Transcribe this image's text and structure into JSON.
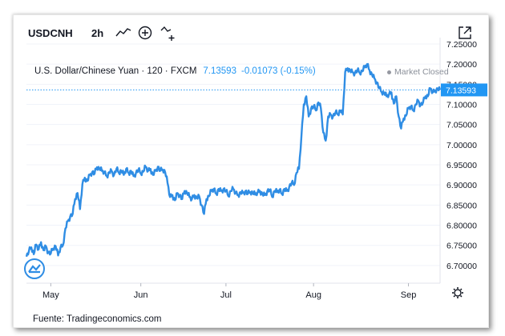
{
  "toolbar": {
    "symbol": "USDCNH",
    "interval": "2h",
    "icons": [
      "line-style-icon",
      "add-indicator-icon",
      "compare-icon",
      "popout-icon",
      "settings-icon"
    ]
  },
  "legend": {
    "instrument": "U.S. Dollar/Chinese Yuan · 120 · FXCM",
    "price": "7.13593",
    "change": "-0.01073 (-0.15%)",
    "market_status": "Market Closed"
  },
  "source": "Fuente: Tradingeconomics.com",
  "colors": {
    "line": "#2f8de4",
    "price_tag": "#2196f3",
    "axis_text": "#131722",
    "grid": "#f0f3fa"
  },
  "chart_data": {
    "type": "line",
    "title": "",
    "xlabel": "",
    "ylabel": "",
    "ylim": [
      6.66,
      7.25
    ],
    "yticks": [
      6.7,
      6.75,
      6.8,
      6.85,
      6.9,
      6.95,
      7.0,
      7.05,
      7.1,
      7.15,
      7.2,
      7.25
    ],
    "ytick_labels": [
      "6.70000",
      "6.75000",
      "6.80000",
      "6.85000",
      "6.90000",
      "6.95000",
      "7.00000",
      "7.05000",
      "7.10000",
      "7.15000",
      "7.20000",
      "7.25000"
    ],
    "xtick_labels": [
      "May",
      "Jun",
      "Jul",
      "Aug",
      "Sep"
    ],
    "xtick_index": [
      10,
      47,
      82,
      118,
      157
    ],
    "last_value_label": "7.13593",
    "last_value": 7.13593,
    "series": [
      {
        "values": [
          6.722,
          6.735,
          6.745,
          6.728,
          6.752,
          6.74,
          6.758,
          6.738,
          6.748,
          6.732,
          6.73,
          6.742,
          6.748,
          6.725,
          6.745,
          6.75,
          6.792,
          6.81,
          6.822,
          6.828,
          6.865,
          6.88,
          6.84,
          6.902,
          6.918,
          6.91,
          6.925,
          6.932,
          6.928,
          6.944,
          6.94,
          6.935,
          6.932,
          6.922,
          6.932,
          6.935,
          6.925,
          6.94,
          6.93,
          6.935,
          6.925,
          6.94,
          6.93,
          6.935,
          6.922,
          6.93,
          6.938,
          6.928,
          6.933,
          6.945,
          6.935,
          6.94,
          6.925,
          6.935,
          6.945,
          6.935,
          6.938,
          6.932,
          6.905,
          6.87,
          6.875,
          6.862,
          6.88,
          6.875,
          6.865,
          6.885,
          6.88,
          6.87,
          6.865,
          6.875,
          6.868,
          6.872,
          6.85,
          6.828,
          6.865,
          6.872,
          6.885,
          6.89,
          6.878,
          6.89,
          6.885,
          6.89,
          6.885,
          6.872,
          6.885,
          6.89,
          6.88,
          6.875,
          6.882,
          6.88,
          6.885,
          6.878,
          6.882,
          6.88,
          6.876,
          6.882,
          6.885,
          6.878,
          6.875,
          6.885,
          6.888,
          6.87,
          6.885,
          6.882,
          6.888,
          6.878,
          6.89,
          6.885,
          6.895,
          6.905,
          6.9,
          6.93,
          6.94,
          7.02,
          7.1,
          7.12,
          7.07,
          7.09,
          7.095,
          7.085,
          7.105,
          7.09,
          7.03,
          7.01,
          7.07,
          7.075,
          7.07,
          7.08,
          7.075,
          7.085,
          7.075,
          7.18,
          7.19,
          7.185,
          7.18,
          7.178,
          7.185,
          7.178,
          7.182,
          7.192,
          7.2,
          7.185,
          7.175,
          7.165,
          7.155,
          7.14,
          7.13,
          7.128,
          7.12,
          7.125,
          7.13,
          7.102,
          7.12,
          7.07,
          7.04,
          7.065,
          7.072,
          7.09,
          7.095,
          7.085,
          7.1,
          7.11,
          7.098,
          7.105,
          7.12,
          7.12,
          7.14,
          7.13,
          7.135,
          7.14,
          7.13593
        ]
      }
    ]
  }
}
